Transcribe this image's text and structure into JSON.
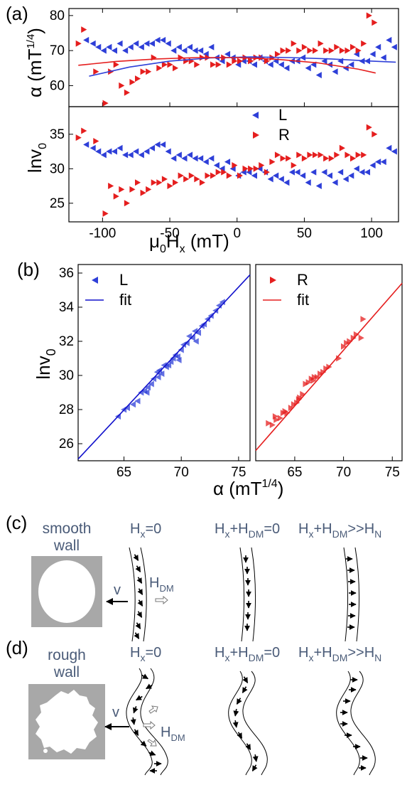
{
  "panel_labels": {
    "a": "(a)",
    "b": "(b)",
    "c": "(c)",
    "d": "(d)"
  },
  "colors": {
    "L": "#2e3fd8",
    "R": "#e51e1e",
    "text_diagram": "#4a5b78",
    "wall_gray": "#a8a8a8"
  },
  "chart_data": [
    {
      "id": "a_top",
      "type": "scatter",
      "ylabel": "α (mT",
      "ylabel_sup": "1/4",
      "ylabel_tail": ")",
      "xlim": [
        -125,
        120
      ],
      "ylim": [
        54,
        82
      ],
      "yticks": [
        60,
        70,
        80
      ],
      "series": [
        {
          "name": "L",
          "marker": "tri-left",
          "color": "#2e3fd8",
          "x": [
            -112,
            -107,
            -103,
            -99,
            -95,
            -91,
            -87,
            -83,
            -79,
            -75,
            -71,
            -67,
            -63,
            -59,
            -55,
            -51,
            -47,
            -43,
            -39,
            -35,
            -31,
            -27,
            -23,
            -19,
            -15,
            -11,
            -7,
            -3,
            1,
            5,
            9,
            13,
            17,
            21,
            25,
            29,
            33,
            37,
            41,
            45,
            49,
            53,
            57,
            61,
            65,
            69,
            73,
            77,
            81,
            85,
            89,
            93,
            97,
            101,
            105,
            109,
            113,
            117
          ],
          "y": [
            73,
            72,
            71,
            70,
            71,
            70,
            72,
            70,
            71,
            72,
            71,
            72,
            72,
            73,
            73,
            72,
            70,
            71,
            70,
            71,
            70,
            70,
            69,
            71,
            68,
            67,
            69,
            68,
            66,
            67,
            67,
            66,
            68,
            67,
            66,
            67,
            66,
            65,
            67,
            67,
            68,
            65,
            66,
            63,
            67,
            66,
            64,
            67,
            65,
            66,
            69,
            67,
            67,
            69,
            71,
            68,
            73,
            71
          ]
        },
        {
          "name": "R",
          "marker": "tri-right",
          "color": "#e51e1e",
          "x": [
            -118,
            -114,
            -105,
            -98,
            -94,
            -90,
            -86,
            -82,
            -78,
            -74,
            -70,
            -66,
            -62,
            -58,
            -54,
            -50,
            -46,
            -42,
            -38,
            -34,
            -30,
            -26,
            -22,
            -18,
            -14,
            -10,
            -6,
            -2,
            2,
            6,
            10,
            14,
            18,
            22,
            26,
            30,
            34,
            38,
            42,
            46,
            50,
            54,
            58,
            62,
            66,
            70,
            74,
            78,
            82,
            86,
            90,
            94,
            98,
            102
          ],
          "y": [
            72,
            76,
            64,
            55,
            64,
            66,
            60,
            58,
            61,
            62,
            64,
            64,
            68,
            65,
            66,
            66,
            65,
            68,
            67,
            67,
            66,
            68,
            68,
            66,
            66,
            68,
            66,
            67,
            67,
            68,
            67,
            68,
            68,
            67,
            68,
            69,
            70,
            70,
            72,
            70,
            71,
            70,
            70,
            72,
            70,
            70,
            71,
            70,
            70,
            71,
            70,
            72,
            80,
            78
          ]
        },
        {
          "name": "L fit",
          "type": "line",
          "color": "#2e3fd8",
          "x": [
            -110,
            -80,
            -50,
            -20,
            10,
            40,
            70,
            100,
            118
          ],
          "y": [
            62.7,
            65.3,
            67.0,
            67.9,
            68.2,
            68.0,
            67.6,
            67.0,
            66.7
          ]
        },
        {
          "name": "R fit",
          "type": "line",
          "color": "#e51e1e",
          "x": [
            -118,
            -90,
            -60,
            -30,
            0,
            30,
            60,
            90,
            103
          ],
          "y": [
            65.8,
            66.9,
            67.6,
            68.0,
            68.0,
            67.5,
            66.5,
            64.7,
            63.6
          ]
        }
      ]
    },
    {
      "id": "a_bottom",
      "type": "scatter",
      "ylabel": "lnv",
      "ylabel_sub": "0",
      "xlabel_main": "μ",
      "xlabel_sub1": "0",
      "xlabel_mid": "H",
      "xlabel_sub2": "x",
      "xlabel_tail": " (mT)",
      "xlim": [
        -125,
        120
      ],
      "ylim": [
        22.3,
        39
      ],
      "yticks": [
        25,
        30,
        35
      ],
      "xticks": [
        -100,
        -50,
        0,
        50,
        100
      ],
      "legend": [
        {
          "label": "L",
          "marker": "tri-left",
          "color": "#2e3fd8"
        },
        {
          "label": "R",
          "marker": "tri-right",
          "color": "#e51e1e"
        }
      ],
      "series": [
        {
          "name": "L",
          "marker": "tri-left",
          "color": "#2e3fd8",
          "x": [
            -112,
            -107,
            -103,
            -99,
            -95,
            -91,
            -87,
            -83,
            -79,
            -75,
            -71,
            -67,
            -63,
            -59,
            -55,
            -51,
            -47,
            -43,
            -39,
            -35,
            -31,
            -27,
            -23,
            -19,
            -15,
            -11,
            -7,
            -3,
            1,
            5,
            9,
            13,
            17,
            21,
            25,
            29,
            33,
            37,
            41,
            45,
            49,
            53,
            57,
            61,
            65,
            69,
            73,
            77,
            81,
            85,
            89,
            93,
            97,
            101,
            105,
            109,
            113,
            117
          ],
          "y": [
            33.5,
            33,
            32.5,
            32,
            32.5,
            32.5,
            33,
            32,
            32,
            32.5,
            32,
            32.5,
            33,
            33.5,
            33.5,
            32.5,
            31.5,
            32,
            31.5,
            32,
            31.5,
            31.5,
            31,
            31.5,
            30.5,
            30,
            31,
            30,
            29,
            29.5,
            29.5,
            29,
            30,
            29.5,
            28.5,
            29,
            28.5,
            28,
            29.5,
            29.5,
            29,
            28,
            29.5,
            27.5,
            29.5,
            29,
            28,
            29.5,
            28.5,
            29,
            30,
            29.5,
            29.5,
            30.5,
            31,
            31,
            33,
            32.5
          ]
        },
        {
          "name": "R",
          "marker": "tri-right",
          "color": "#e51e1e",
          "x": [
            -118,
            -114,
            -105,
            -98,
            -94,
            -90,
            -86,
            -82,
            -78,
            -74,
            -70,
            -66,
            -62,
            -58,
            -54,
            -50,
            -46,
            -42,
            -38,
            -34,
            -30,
            -26,
            -22,
            -18,
            -14,
            -10,
            -6,
            -2,
            2,
            6,
            10,
            14,
            18,
            22,
            26,
            30,
            34,
            38,
            42,
            46,
            50,
            54,
            58,
            62,
            66,
            70,
            74,
            78,
            82,
            86,
            90,
            94,
            98,
            102
          ],
          "y": [
            34.5,
            35.5,
            34,
            23.5,
            27.5,
            26,
            27,
            25,
            27,
            28,
            26.5,
            27,
            28,
            28,
            28.5,
            27.5,
            28,
            29,
            28.5,
            29,
            28.5,
            28,
            29,
            29,
            29.5,
            29.5,
            29,
            30.5,
            29,
            30,
            30,
            30,
            30.5,
            29.5,
            31,
            32,
            31.5,
            31.5,
            30.5,
            32,
            31.5,
            32,
            32,
            32,
            31.5,
            31.5,
            32,
            33,
            32,
            31.5,
            32,
            32,
            36,
            35
          ]
        }
      ]
    },
    {
      "id": "b_left",
      "type": "scatter",
      "ylabel": "lnv",
      "ylabel_sub": "0",
      "xlim": [
        61,
        76
      ],
      "ylim": [
        25,
        36.5
      ],
      "xticks": [
        65,
        70,
        75
      ],
      "yticks": [
        26,
        28,
        30,
        32,
        34,
        36
      ],
      "legend": [
        {
          "label": "L",
          "marker": "tri-left",
          "color": "#2e3fd8"
        },
        {
          "label": "fit",
          "marker": "line",
          "color": "#1111cc"
        }
      ],
      "series": [
        {
          "name": "L",
          "marker": "tri-left",
          "color": "#2e3fd8",
          "x": [
            64.5,
            65.0,
            65.3,
            65.8,
            66.2,
            66.5,
            66.8,
            67.1,
            67.4,
            67.6,
            67.9,
            68.1,
            68.3,
            68.5,
            68.7,
            68.9,
            69.1,
            69.3,
            69.5,
            69.7,
            70.0,
            70.2,
            70.5,
            70.7,
            71.0,
            71.2,
            71.5,
            71.8,
            72.0,
            72.3,
            72.6,
            73.0,
            73.3,
            73.6,
            68.0,
            69.8,
            71.3,
            67.0
          ],
          "y": [
            27.6,
            28.0,
            28.1,
            28.3,
            28.5,
            29.0,
            29.1,
            29.3,
            29.5,
            29.8,
            30.2,
            30.3,
            30.1,
            30.6,
            30.5,
            30.6,
            30.8,
            31.0,
            31.2,
            31.1,
            31.5,
            31.8,
            31.9,
            32.3,
            32.2,
            32.6,
            32.5,
            32.9,
            33.0,
            33.3,
            33.5,
            33.8,
            34.1,
            34.3,
            29.9,
            30.9,
            32.0,
            29.0
          ]
        },
        {
          "name": "fit",
          "type": "line",
          "color": "#1111cc",
          "x": [
            61,
            76
          ],
          "y": [
            25.1,
            35.9
          ]
        }
      ]
    },
    {
      "id": "b_right",
      "type": "scatter",
      "xlim": [
        61,
        76
      ],
      "ylim": [
        25,
        36.5
      ],
      "xticks": [
        65,
        70,
        75
      ],
      "legend": [
        {
          "label": "R",
          "marker": "tri-right",
          "color": "#e51e1e"
        },
        {
          "label": "fit",
          "marker": "line",
          "color": "#e51e1e"
        }
      ],
      "series": [
        {
          "name": "R",
          "marker": "tri-right",
          "color": "#e51e1e",
          "x": [
            62.3,
            62.7,
            63.1,
            63.5,
            63.8,
            64.2,
            64.6,
            64.9,
            65.2,
            65.5,
            65.8,
            66.1,
            66.4,
            66.7,
            67.0,
            67.3,
            67.6,
            67.9,
            68.2,
            68.5,
            69.5,
            70.0,
            70.3,
            70.6,
            71.0,
            71.3,
            71.8,
            72.0,
            63.0,
            64.0,
            65.4,
            66.9
          ],
          "y": [
            27.2,
            27.1,
            27.4,
            27.5,
            27.8,
            27.8,
            28.1,
            28.3,
            28.4,
            28.7,
            28.9,
            29.5,
            29.6,
            29.8,
            29.9,
            29.9,
            30.1,
            30.2,
            30.4,
            30.5,
            31.0,
            31.7,
            31.9,
            32.0,
            32.2,
            32.4,
            32.2,
            33.3,
            27.6,
            27.9,
            28.6,
            29.7
          ]
        },
        {
          "name": "fit",
          "type": "line",
          "color": "#e51e1e",
          "x": [
            61,
            76
          ],
          "y": [
            25.6,
            35.4
          ]
        }
      ]
    }
  ],
  "axis_b_xlabel": {
    "main": "α (mT",
    "sup": "1/4",
    "tail": ")"
  },
  "diagrams": {
    "c": {
      "wall_label_1": "smooth",
      "wall_label_2": "wall"
    },
    "d": {
      "wall_label_1": "rough",
      "wall_label_2": "wall"
    },
    "col1": {
      "main": "H",
      "sub": "x",
      "tail": "=0"
    },
    "col2": {
      "h1": "H",
      "s1": "x",
      "plus": "+H",
      "s2": "DM",
      "tail": "=0"
    },
    "col3": {
      "h1": "H",
      "s1": "x",
      "plus": "+H",
      "s2": "DM",
      "mid": ">>H",
      "s3": "N"
    },
    "velocity": "v",
    "hdm": {
      "main": "H",
      "sub": "DM"
    }
  }
}
